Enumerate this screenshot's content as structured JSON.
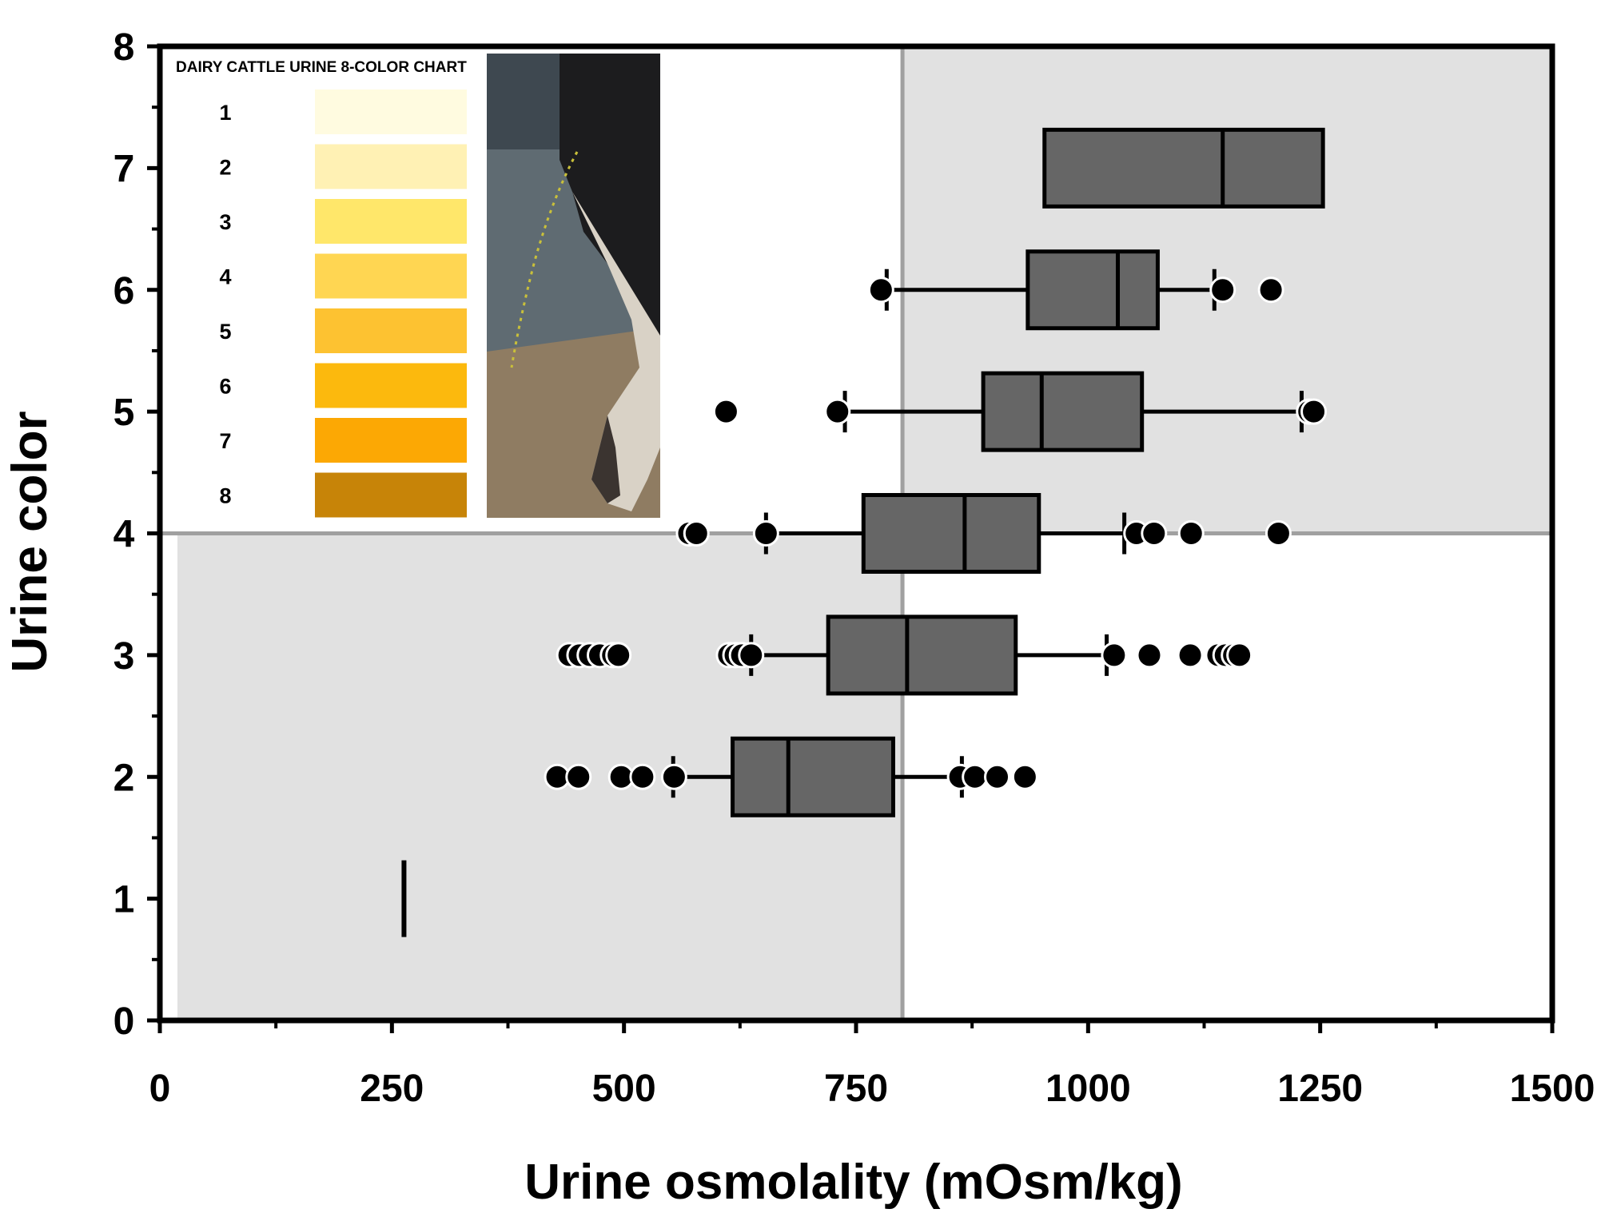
{
  "chart_data": {
    "type": "boxplot",
    "orientation": "horizontal",
    "xlabel": "Urine osmolality (mOsm/kg)",
    "ylabel": "Urine color",
    "xlim": [
      0,
      1500
    ],
    "ylim": [
      0,
      8
    ],
    "x_ticks": [
      0,
      250,
      500,
      750,
      1000,
      1250,
      1500
    ],
    "y_ticks": [
      0,
      1,
      2,
      3,
      4,
      5,
      6,
      7,
      8
    ],
    "reference_lines": {
      "x": 800,
      "y": 4
    },
    "shaded_quadrants": [
      "upper-right",
      "lower-left"
    ],
    "boxes": [
      {
        "color": 1,
        "single_value": 263
      },
      {
        "color": 2,
        "whisker_low": 553,
        "q1": 617,
        "median": 677,
        "q3": 790,
        "whisker_high": 864,
        "outliers": [
          428,
          451,
          497,
          520,
          554,
          862,
          878,
          902,
          932
        ]
      },
      {
        "color": 3,
        "whisker_low": 637,
        "q1": 720,
        "median": 805,
        "q3": 922,
        "whisker_high": 1020,
        "outliers": [
          441,
          452,
          463,
          474,
          488,
          494,
          613,
          620,
          627,
          637,
          1028,
          1066,
          1110,
          1140,
          1148,
          1157,
          1163
        ]
      },
      {
        "color": 4,
        "whisker_low": 653,
        "q1": 758,
        "median": 867,
        "q3": 947,
        "whisker_high": 1039,
        "outliers": [
          570,
          578,
          653,
          1052,
          1071,
          1111,
          1205
        ]
      },
      {
        "color": 5,
        "whisker_low": 738,
        "q1": 887,
        "median": 950,
        "q3": 1058,
        "whisker_high": 1230,
        "outliers": [
          610,
          730,
          1238,
          1243
        ]
      },
      {
        "color": 6,
        "whisker_low": 783,
        "q1": 935,
        "median": 1032,
        "q3": 1075,
        "whisker_high": 1136,
        "outliers": [
          777,
          1145,
          1197
        ]
      },
      {
        "color": 7,
        "q1": 953,
        "median": 1145,
        "q3": 1253
      }
    ],
    "inset_chart": {
      "title": "DAIRY CATTLE URINE 8-COLOR CHART",
      "swatches": [
        {
          "label": "1",
          "color": "#fffbe0"
        },
        {
          "label": "2",
          "color": "#fff1b4"
        },
        {
          "label": "3",
          "color": "#ffe76a"
        },
        {
          "label": "4",
          "color": "#ffd652"
        },
        {
          "label": "5",
          "color": "#fdc231"
        },
        {
          "label": "6",
          "color": "#fcb90d"
        },
        {
          "label": "7",
          "color": "#fca804"
        },
        {
          "label": "8",
          "color": "#c78408"
        }
      ]
    }
  },
  "colors": {
    "shade": "#e1e1e1",
    "box_fill": "#666666",
    "reference_line": "#a0a0a0",
    "ink": "#000000"
  }
}
